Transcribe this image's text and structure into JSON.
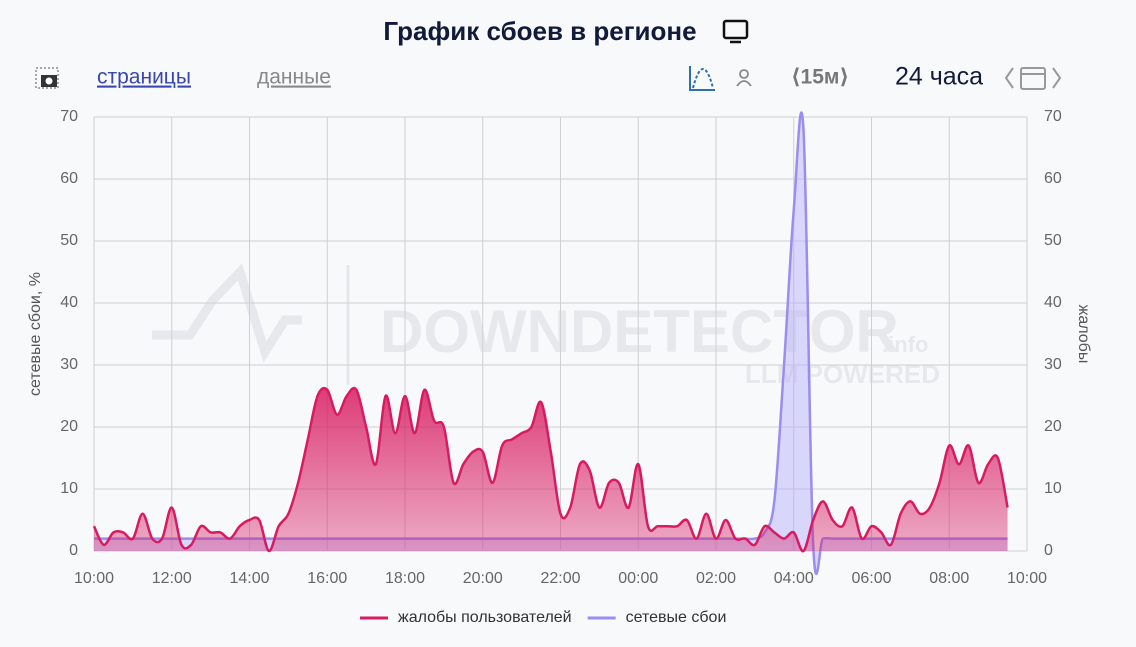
{
  "toolbar": {
    "pages_link": "страницы",
    "data_link": "данные",
    "interval": "⟨15м⟩",
    "period": "24 часа"
  },
  "watermark": {
    "brand": "DOWNDETECTOR",
    "suffix": ".info",
    "tagline": "LLM POWERED"
  },
  "chart_data": {
    "type": "area",
    "title": "График сбоев в регионе",
    "y_label": "сетевые сбои, %",
    "y2_label": "жалобы",
    "xlim": [
      0,
      24
    ],
    "xticks": [
      {
        "value": 0,
        "label": "10:00"
      },
      {
        "value": 2,
        "label": "12:00"
      },
      {
        "value": 4,
        "label": "14:00"
      },
      {
        "value": 6,
        "label": "16:00"
      },
      {
        "value": 8,
        "label": "18:00"
      },
      {
        "value": 10,
        "label": "20:00"
      },
      {
        "value": 12,
        "label": "22:00"
      },
      {
        "value": 14,
        "label": "00:00"
      },
      {
        "value": 16,
        "label": "02:00"
      },
      {
        "value": 18,
        "label": "04:00"
      },
      {
        "value": 20,
        "label": "06:00"
      },
      {
        "value": 22,
        "label": "08:00"
      },
      {
        "value": 24,
        "label": "10:00"
      }
    ],
    "ylim": [
      0,
      70
    ],
    "yticks": [
      0,
      10,
      20,
      30,
      40,
      50,
      60,
      70
    ],
    "y2lim": [
      0,
      70
    ],
    "y2ticks": [
      0,
      10,
      20,
      30,
      40,
      50,
      60,
      70
    ],
    "grid": true,
    "x": [
      0,
      0.25,
      0.5,
      0.75,
      1,
      1.25,
      1.5,
      1.75,
      2,
      2.25,
      2.5,
      2.75,
      3,
      3.25,
      3.5,
      3.75,
      4,
      4.25,
      4.5,
      4.75,
      5,
      5.25,
      5.5,
      5.75,
      6,
      6.25,
      6.5,
      6.75,
      7,
      7.25,
      7.5,
      7.75,
      8,
      8.25,
      8.5,
      8.75,
      9,
      9.25,
      9.5,
      9.75,
      10,
      10.25,
      10.5,
      10.75,
      11,
      11.25,
      11.5,
      11.75,
      12,
      12.25,
      12.5,
      12.75,
      13,
      13.25,
      13.5,
      13.75,
      14,
      14.25,
      14.5,
      14.75,
      15,
      15.25,
      15.5,
      15.75,
      16,
      16.25,
      16.5,
      16.75,
      17,
      17.25,
      17.5,
      17.75,
      18,
      18.25,
      18.5,
      18.75,
      19,
      19.25,
      19.5,
      19.75,
      20,
      20.25,
      20.5,
      20.75,
      21,
      21.25,
      21.5,
      21.75,
      22,
      22.25,
      22.5,
      22.75,
      23,
      23.25,
      23.5
    ],
    "series": [
      {
        "name": "жалобы пользователей",
        "color": "#d81b60",
        "axis": "y2",
        "values": [
          4,
          1,
          3,
          3,
          2,
          6,
          2,
          2,
          7,
          1,
          1,
          4,
          3,
          3,
          2,
          4,
          5,
          5,
          0,
          4,
          6,
          11,
          18,
          25,
          26,
          22,
          25,
          26,
          20,
          14,
          25,
          19,
          25,
          19,
          26,
          21,
          20,
          11,
          14,
          16,
          16,
          11,
          17,
          18,
          19,
          20,
          24,
          16,
          6,
          7,
          14,
          13,
          7,
          11,
          11,
          7,
          14,
          4,
          4,
          4,
          4,
          5,
          2,
          6,
          2,
          5,
          2,
          2,
          1,
          4,
          3,
          2,
          3,
          0,
          5,
          8,
          5,
          4,
          7,
          2,
          4,
          3,
          1,
          6,
          8,
          6,
          7,
          11,
          17,
          14,
          17,
          11,
          14,
          15,
          7
        ]
      },
      {
        "name": "сетевые сбои",
        "color": "#9b8cf0",
        "values": [
          2,
          2,
          2,
          2,
          2,
          2,
          2,
          2,
          2,
          2,
          2,
          2,
          2,
          2,
          2,
          2,
          2,
          2,
          2,
          2,
          2,
          2,
          2,
          2,
          2,
          2,
          2,
          2,
          2,
          2,
          2,
          2,
          2,
          2,
          2,
          2,
          2,
          2,
          2,
          2,
          2,
          2,
          2,
          2,
          2,
          2,
          2,
          2,
          2,
          2,
          2,
          2,
          2,
          2,
          2,
          2,
          2,
          2,
          2,
          2,
          2,
          2,
          2,
          2,
          2,
          2,
          2,
          2,
          2,
          3,
          8,
          30,
          55,
          68,
          1,
          2,
          2,
          2,
          2,
          2,
          2,
          2,
          2,
          2,
          2,
          2,
          2,
          2,
          2,
          2,
          2,
          2,
          2,
          2,
          2
        ]
      }
    ]
  }
}
